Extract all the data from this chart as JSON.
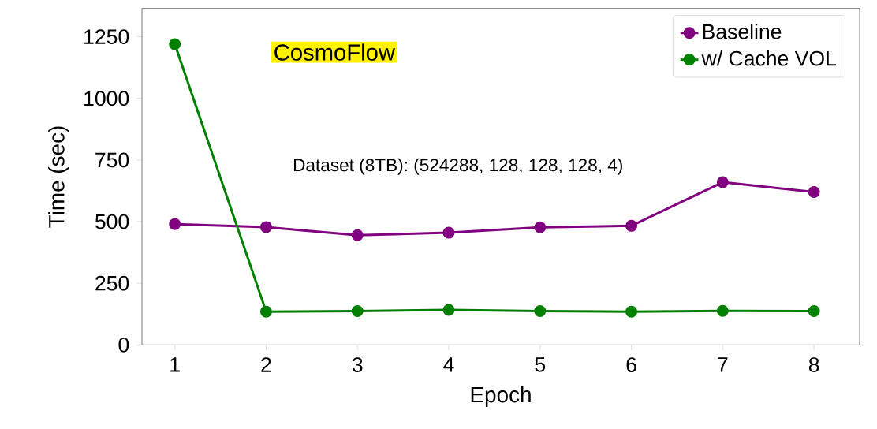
{
  "chart_data": {
    "type": "line",
    "xlabel": "Epoch",
    "ylabel": "Time (sec)",
    "x": [
      1,
      2,
      3,
      4,
      5,
      6,
      7,
      8
    ],
    "series": [
      {
        "name": "Baseline",
        "color": "#800080",
        "values": [
          490,
          478,
          445,
          455,
          477,
          483,
          660,
          620
        ]
      },
      {
        "name": "w/ Cache VOL",
        "color": "#008000",
        "values": [
          1220,
          135,
          137,
          142,
          137,
          135,
          138,
          137
        ]
      }
    ],
    "xlim": [
      0.64,
      8.5
    ],
    "ylim": [
      0,
      1365
    ],
    "xticks": [
      1,
      2,
      3,
      4,
      5,
      6,
      7,
      8
    ],
    "yticks": [
      0,
      250,
      500,
      750,
      1000,
      1250
    ],
    "annotations": [
      "CosmoFlow",
      "Dataset (8TB): (524288, 128, 128, 128, 4)"
    ],
    "legend": "top right",
    "marker": "circle",
    "line_style": "solid",
    "grid": false
  }
}
